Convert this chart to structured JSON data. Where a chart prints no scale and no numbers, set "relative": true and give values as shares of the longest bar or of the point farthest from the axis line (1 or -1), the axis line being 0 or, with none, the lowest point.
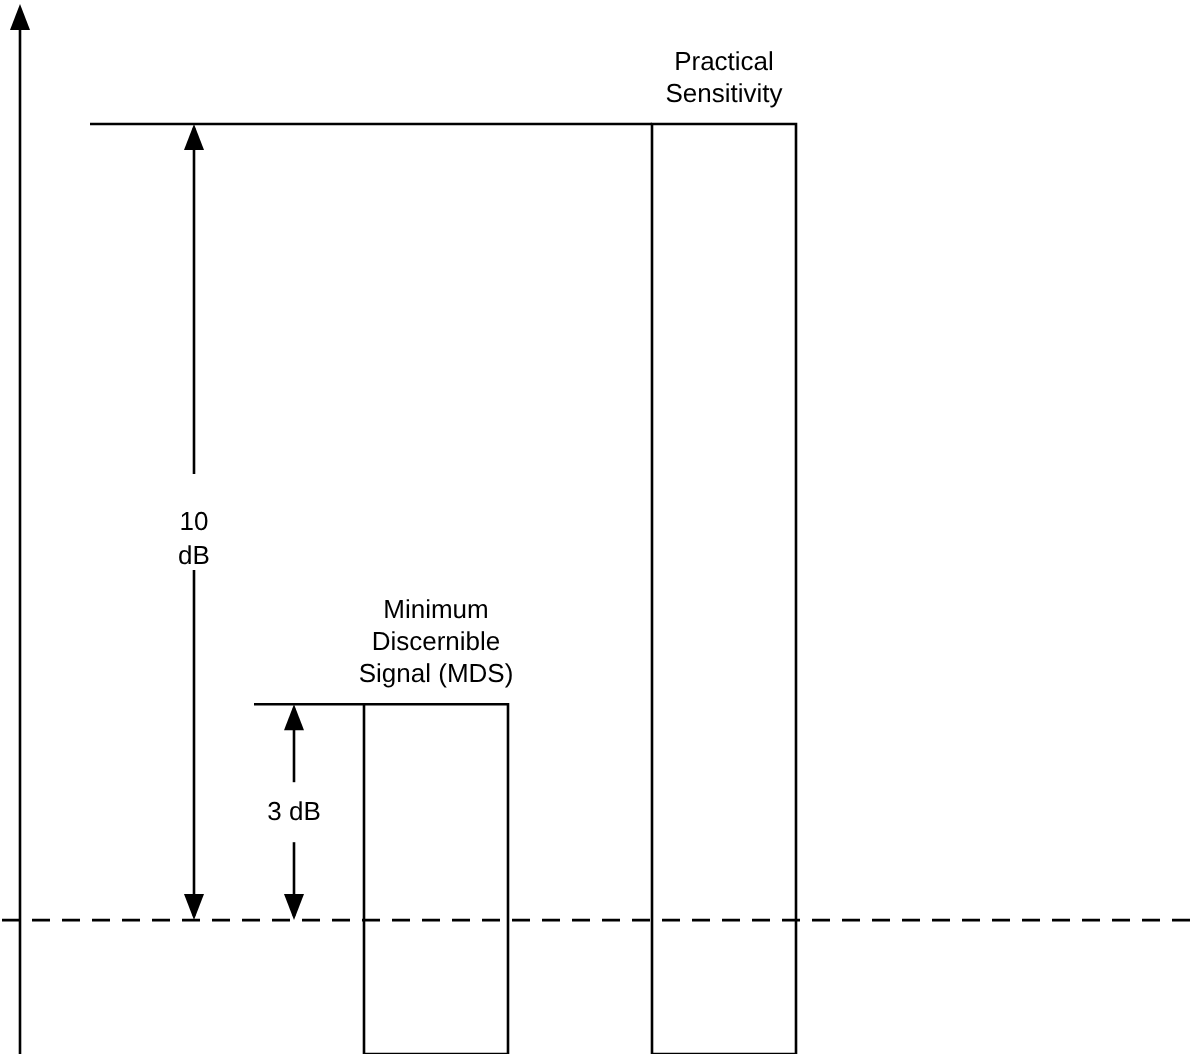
{
  "chart_data": {
    "type": "bar",
    "relative": true,
    "categories": [
      "Minimum Discernible Signal (MDS)",
      "Practical Sensitivity"
    ],
    "values": [
      0.376,
      1
    ],
    "color": "#ffffff",
    "ref_lines": [
      {
        "axis": "y",
        "value": 0.144,
        "line_style": "dashed",
        "color": "#000000"
      }
    ],
    "annotations": [
      "3 dB",
      "10 dB"
    ]
  }
}
